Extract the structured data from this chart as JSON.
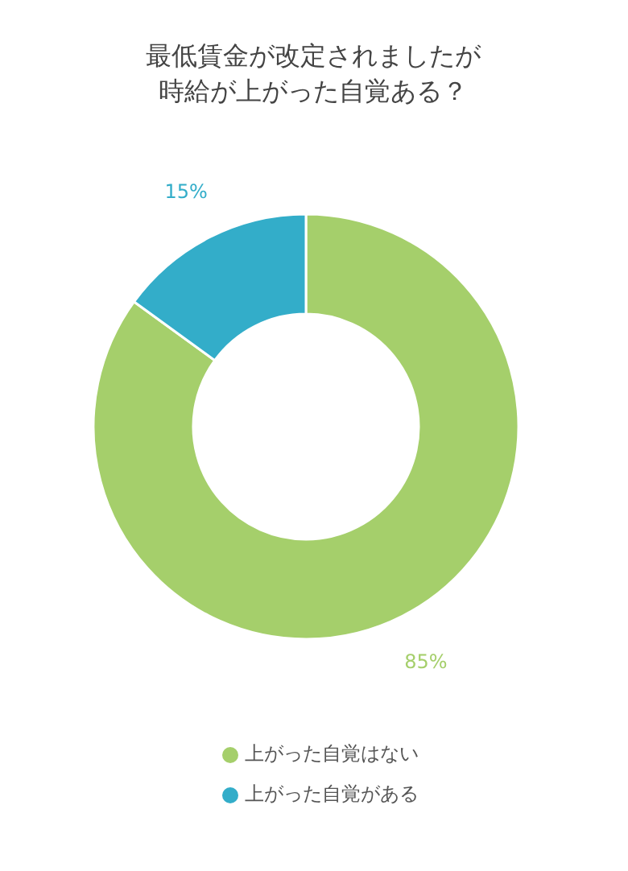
{
  "chart_data": {
    "type": "donut",
    "title": "最低賃金が改定されましたが時給が上がった自覚ある？",
    "categories": [
      "上がった自覚はない",
      "上がった自覚がある"
    ],
    "values": [
      85,
      15
    ],
    "colors": [
      "#a5cf6b",
      "#33adc9"
    ],
    "value_labels": [
      "85%",
      "15%"
    ],
    "legend": "bottom"
  }
}
